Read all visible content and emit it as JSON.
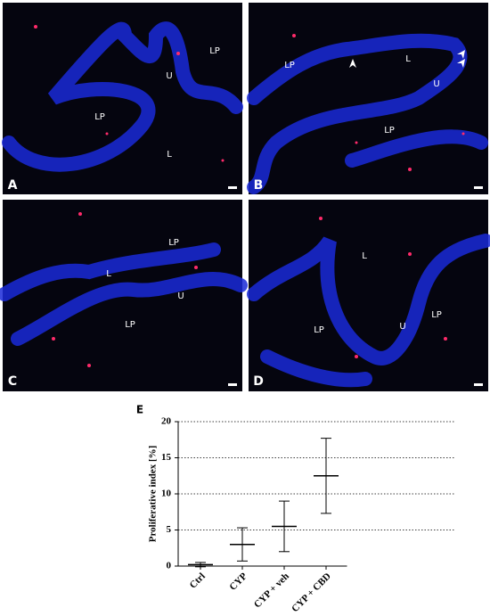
{
  "panels": [
    {
      "letter": "A",
      "labels": [
        "LP",
        "U",
        "LP",
        "L"
      ]
    },
    {
      "letter": "B",
      "labels": [
        "LP",
        "L",
        "U",
        "LP"
      ]
    },
    {
      "letter": "C",
      "labels": [
        "LP",
        "L",
        "U",
        "LP"
      ]
    },
    {
      "letter": "D",
      "labels": [
        "L",
        "LP",
        "U",
        "LP"
      ]
    }
  ],
  "chart_data": {
    "type": "errorbar",
    "panel_letter": "E",
    "ylabel": "Proliferative index [%]",
    "categories": [
      "Ctrl",
      "CYP",
      "CYP + veh",
      "CYP + CBD"
    ],
    "values": [
      0.2,
      3.0,
      5.5,
      12.5
    ],
    "errors": [
      0.3,
      2.3,
      3.5,
      5.2
    ],
    "color": "#000000",
    "ylim": [
      0,
      20
    ],
    "yticks": [
      0,
      5,
      10,
      15,
      20
    ],
    "grid": true
  }
}
